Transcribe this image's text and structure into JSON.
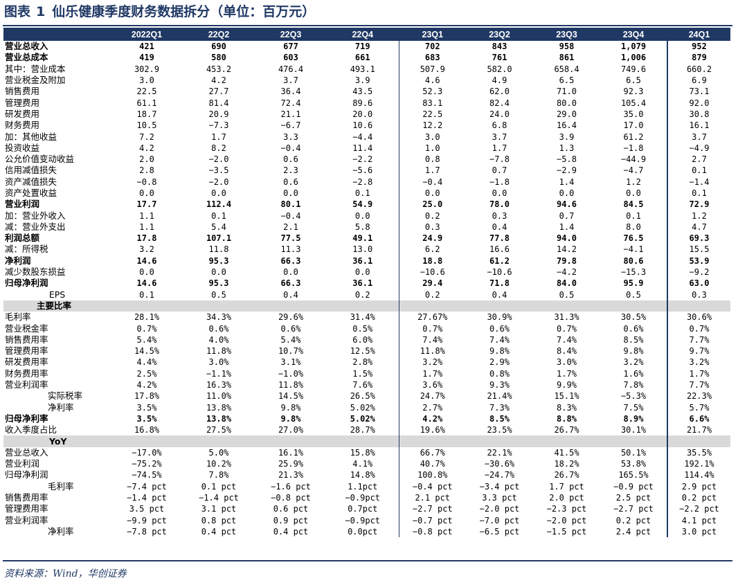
{
  "title": {
    "prefix": "图表",
    "number": "1",
    "text": "仙乐健康季度财务数据拆分（单位：百万元）"
  },
  "columns": [
    "2022Q1",
    "22Q2",
    "22Q3",
    "22Q4",
    "23Q1",
    "23Q2",
    "23Q3",
    "23Q4",
    "24Q1"
  ],
  "rows": [
    {
      "label": "营业总收入",
      "style": "bold",
      "values": [
        "421",
        "690",
        "677",
        "719",
        "702",
        "843",
        "958",
        "1,079",
        "952"
      ]
    },
    {
      "label": "营业总成本",
      "style": "bold",
      "values": [
        "419",
        "580",
        "603",
        "661",
        "683",
        "761",
        "861",
        "1,006",
        "879"
      ]
    },
    {
      "label": "其中：营业成本",
      "style": "ind1",
      "values": [
        "302.9",
        "453.2",
        "476.4",
        "493.1",
        "507.9",
        "582.0",
        "658.4",
        "749.6",
        "660.2"
      ]
    },
    {
      "label": "营业税金及附加",
      "style": "ind1",
      "values": [
        "3.0",
        "4.2",
        "3.7",
        "3.9",
        "4.6",
        "4.9",
        "6.5",
        "6.5",
        "6.9"
      ]
    },
    {
      "label": "销售费用",
      "style": "ind2",
      "values": [
        "22.5",
        "27.7",
        "36.4",
        "43.5",
        "52.3",
        "62.0",
        "71.0",
        "92.3",
        "73.1"
      ]
    },
    {
      "label": "管理费用",
      "style": "ind2",
      "values": [
        "61.1",
        "81.4",
        "72.4",
        "89.6",
        "83.1",
        "82.4",
        "80.0",
        "105.4",
        "92.0"
      ]
    },
    {
      "label": "研发费用",
      "style": "ind2",
      "values": [
        "18.7",
        "20.9",
        "21.1",
        "20.0",
        "22.5",
        "24.0",
        "29.0",
        "35.0",
        "30.8"
      ]
    },
    {
      "label": "财务费用",
      "style": "ind2",
      "values": [
        "10.5",
        "−7.3",
        "−6.7",
        "10.6",
        "12.2",
        "6.8",
        "16.4",
        "17.0",
        "16.1"
      ]
    },
    {
      "label": "加：其他收益",
      "style": "plain",
      "values": [
        "7.2",
        "1.7",
        "3.3",
        "−4.4",
        "3.0",
        "3.7",
        "3.9",
        "61.2",
        "3.7"
      ]
    },
    {
      "label": "投资收益",
      "style": "plain",
      "values": [
        "4.2",
        "8.2",
        "−0.4",
        "11.4",
        "1.0",
        "1.7",
        "1.3",
        "−1.8",
        "−4.9"
      ]
    },
    {
      "label": "公允价值变动收益",
      "style": "plain",
      "values": [
        "2.0",
        "−2.0",
        "0.6",
        "−2.2",
        "0.8",
        "−7.8",
        "−5.8",
        "−44.9",
        "2.7"
      ]
    },
    {
      "label": "信用减值损失",
      "style": "plain",
      "values": [
        "2.8",
        "−3.5",
        "2.3",
        "−5.6",
        "1.7",
        "0.7",
        "−2.9",
        "−4.7",
        "0.1"
      ]
    },
    {
      "label": "资产减值损失",
      "style": "plain",
      "values": [
        "−0.8",
        "−2.0",
        "0.6",
        "−2.8",
        "−0.4",
        "−1.8",
        "1.4",
        "1.2",
        "−1.4"
      ]
    },
    {
      "label": "资产处置收益",
      "style": "plain",
      "values": [
        "0.0",
        "0.0",
        "0.0",
        "0.1",
        "0.0",
        "0.0",
        "0.0",
        "0.0",
        "0.1"
      ]
    },
    {
      "label": "营业利润",
      "style": "bold",
      "values": [
        "17.7",
        "112.4",
        "80.1",
        "54.9",
        "25.0",
        "78.0",
        "94.6",
        "84.5",
        "72.9"
      ]
    },
    {
      "label": "加：营业外收入",
      "style": "ind1",
      "values": [
        "1.1",
        "0.1",
        "−0.4",
        "0.0",
        "0.2",
        "0.3",
        "0.7",
        "0.1",
        "1.2"
      ]
    },
    {
      "label": "减：营业外支出",
      "style": "ind1",
      "values": [
        "1.1",
        "5.4",
        "2.1",
        "5.8",
        "0.3",
        "0.4",
        "1.4",
        "8.0",
        "4.7"
      ]
    },
    {
      "label": "利润总额",
      "style": "bold",
      "values": [
        "17.8",
        "107.1",
        "77.5",
        "49.1",
        "24.9",
        "77.8",
        "94.0",
        "76.5",
        "69.3"
      ]
    },
    {
      "label": "减：所得税",
      "style": "ind2",
      "values": [
        "3.2",
        "11.8",
        "11.3",
        "13.0",
        "6.2",
        "16.6",
        "14.2",
        "−4.1",
        "15.5"
      ]
    },
    {
      "label": "净利润",
      "style": "bold",
      "values": [
        "14.6",
        "95.3",
        "66.3",
        "36.1",
        "18.8",
        "61.2",
        "79.8",
        "80.6",
        "53.9"
      ]
    },
    {
      "label": "减少数股东损益",
      "style": "ind1",
      "values": [
        "0.0",
        "0.0",
        "0.0",
        "0.0",
        "−10.6",
        "−10.6",
        "−4.2",
        "−15.3",
        "−9.2"
      ]
    },
    {
      "label": "归母净利润",
      "style": "bold",
      "values": [
        "14.6",
        "95.3",
        "66.3",
        "36.1",
        "29.4",
        "71.8",
        "84.0",
        "95.9",
        "63.0"
      ]
    },
    {
      "label": "EPS",
      "style": "center",
      "values": [
        "0.1",
        "0.5",
        "0.4",
        "0.2",
        "0.2",
        "0.4",
        "0.5",
        "0.5",
        "0.3"
      ]
    },
    {
      "label": "主要比率",
      "style": "section",
      "values": []
    },
    {
      "label": "毛利率",
      "style": "ind3",
      "values": [
        "28.1%",
        "34.3%",
        "29.6%",
        "31.4%",
        "27.67%",
        "30.9%",
        "31.3%",
        "30.5%",
        "30.6%"
      ]
    },
    {
      "label": "营业税金率",
      "style": "ind3",
      "values": [
        "0.7%",
        "0.6%",
        "0.6%",
        "0.5%",
        "0.7%",
        "0.6%",
        "0.7%",
        "0.6%",
        "0.7%"
      ]
    },
    {
      "label": "销售费用率",
      "style": "ind3",
      "values": [
        "5.4%",
        "4.0%",
        "5.4%",
        "6.0%",
        "7.4%",
        "7.4%",
        "7.4%",
        "8.5%",
        "7.7%"
      ]
    },
    {
      "label": "管理费用率",
      "style": "ind3",
      "values": [
        "14.5%",
        "11.8%",
        "10.7%",
        "12.5%",
        "11.8%",
        "9.8%",
        "8.4%",
        "9.8%",
        "9.7%"
      ]
    },
    {
      "label": "研发费用率",
      "style": "ind3",
      "values": [
        "4.4%",
        "3.0%",
        "3.1%",
        "2.8%",
        "3.2%",
        "2.9%",
        "3.0%",
        "3.2%",
        "3.2%"
      ]
    },
    {
      "label": "财务费用率",
      "style": "ind3",
      "values": [
        "2.5%",
        "−1.1%",
        "−1.0%",
        "1.5%",
        "1.7%",
        "0.8%",
        "1.7%",
        "1.6%",
        "1.7%"
      ]
    },
    {
      "label": "营业利润率",
      "style": "ind3",
      "values": [
        "4.2%",
        "16.3%",
        "11.8%",
        "7.6%",
        "3.6%",
        "9.3%",
        "9.9%",
        "7.8%",
        "7.7%"
      ]
    },
    {
      "label": "实际税率",
      "style": "ind3x",
      "values": [
        "17.8%",
        "11.0%",
        "14.5%",
        "26.5%",
        "24.7%",
        "21.4%",
        "15.1%",
        "−5.3%",
        "22.3%"
      ]
    },
    {
      "label": "净利率",
      "style": "ind3x",
      "values": [
        "3.5%",
        "13.8%",
        "9.8%",
        "5.02%",
        "2.7%",
        "7.3%",
        "8.3%",
        "7.5%",
        "5.7%"
      ]
    },
    {
      "label": "归母净利率",
      "style": "bold",
      "values": [
        "3.5%",
        "13.8%",
        "9.8%",
        "5.02%",
        "4.2%",
        "8.5%",
        "8.8%",
        "8.9%",
        "6.6%"
      ]
    },
    {
      "label": "收入季度占比",
      "style": "ind3",
      "values": [
        "16.8%",
        "27.5%",
        "27.0%",
        "28.7%",
        "19.6%",
        "23.5%",
        "26.7%",
        "30.1%",
        "21.7%"
      ]
    },
    {
      "label": "YoY",
      "style": "section",
      "values": []
    },
    {
      "label": "营业总收入",
      "style": "ind3",
      "values": [
        "−17.0%",
        "5.0%",
        "16.1%",
        "15.8%",
        "66.7%",
        "22.1%",
        "41.5%",
        "50.1%",
        "35.5%"
      ]
    },
    {
      "label": "营业利润",
      "style": "ind3",
      "values": [
        "−75.2%",
        "10.2%",
        "25.9%",
        "4.1%",
        "40.7%",
        "−30.6%",
        "18.2%",
        "53.8%",
        "192.1%"
      ]
    },
    {
      "label": "归母净利润",
      "style": "ind3",
      "values": [
        "−74.5%",
        "7.8%",
        "21.3%",
        "14.8%",
        "100.8%",
        "−24.7%",
        "26.7%",
        "165.5%",
        "114.4%"
      ]
    },
    {
      "label": "毛利率",
      "style": "ind3x",
      "values": [
        "−7.4 pct",
        "0.1 pct",
        "−1.6 pct",
        "1.1pct",
        "−0.4 pct",
        "−3.4 pct",
        "1.7 pct",
        "−0.9 pct",
        "2.9 pct"
      ]
    },
    {
      "label": "销售费用率",
      "style": "ind3",
      "values": [
        "−1.4 pct",
        "−1.4 pct",
        "−0.8 pct",
        "−0.9pct",
        "2.1 pct",
        "3.3 pct",
        "2.0 pct",
        "2.5 pct",
        "0.2 pct"
      ]
    },
    {
      "label": "管理费用率",
      "style": "ind3",
      "values": [
        "3.5 pct",
        "3.1 pct",
        "0.6 pct",
        "0.7pct",
        "−2.7 pct",
        "−2.0 pct",
        "−2.3 pct",
        "−2.7 pct",
        "−2.2 pct"
      ]
    },
    {
      "label": "营业利润率",
      "style": "ind3",
      "values": [
        "−9.9 pct",
        "0.8 pct",
        "0.9 pct",
        "−0.9pct",
        "−0.7 pct",
        "−7.0 pct",
        "−2.0 pct",
        "0.2 pct",
        "4.1 pct"
      ]
    },
    {
      "label": "净利率",
      "style": "ind3x",
      "values": [
        "−7.8 pct",
        "0.4 pct",
        "0.4 pct",
        "0.0pct",
        "−0.8 pct",
        "−6.5 pct",
        "−1.5 pct",
        "2.4 pct",
        "3.0 pct"
      ]
    }
  ],
  "source": "资料来源：Wind，华创证券"
}
